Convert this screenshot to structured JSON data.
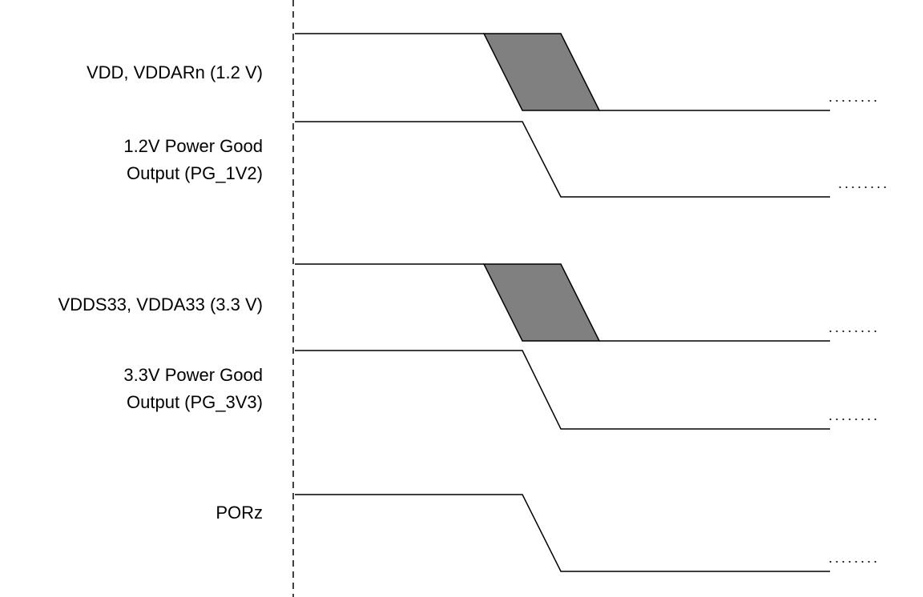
{
  "colors": {
    "line": "#000000",
    "transition_fill": "#808080",
    "background": "#ffffff"
  },
  "signals": [
    {
      "id": "vdd",
      "label_lines": [
        "VDD, VDDARn (1.2 V)"
      ],
      "transition": "band"
    },
    {
      "id": "pg1v2",
      "label_lines": [
        "1.2V Power Good",
        "Output (PG_1V2)"
      ],
      "transition": "edge"
    },
    {
      "id": "vdds33",
      "label_lines": [
        "VDDS33, VDDA33 (3.3 V)"
      ],
      "transition": "band"
    },
    {
      "id": "pg3v3",
      "label_lines": [
        "3.3V Power Good",
        "Output (PG_3V3)"
      ],
      "transition": "edge"
    },
    {
      "id": "porz",
      "label_lines": [
        "PORz"
      ],
      "transition": "edge"
    }
  ],
  "continuation_marker": "........"
}
